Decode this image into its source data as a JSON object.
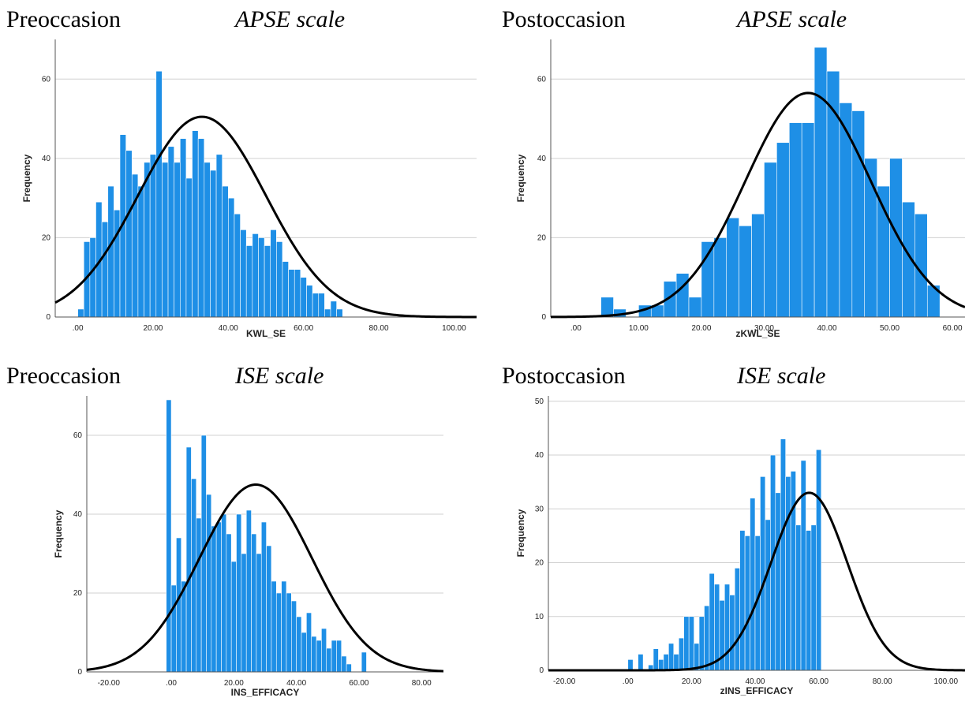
{
  "panels": [
    {
      "occasion": "Preoccasion",
      "scale": "APSE scale"
    },
    {
      "occasion": "Postoccasion",
      "scale": "APSE scale"
    },
    {
      "occasion": "Preoccasion",
      "scale": "ISE scale"
    },
    {
      "occasion": "Postoccasion",
      "scale": "ISE scale"
    }
  ],
  "colors": {
    "bar": "#1E8FE6",
    "bar_edge": "#ffffff",
    "curve": "#000000",
    "grid": "#d0d0d0"
  },
  "chart_data": [
    {
      "type": "bar",
      "title": "Preoccasion APSE scale",
      "xlabel": "KWL_SE",
      "ylabel": "Frequency",
      "xlim": [
        -6,
        106
      ],
      "ylim": [
        0,
        70
      ],
      "xticks": [
        0,
        20,
        40,
        60,
        80,
        100
      ],
      "xtick_labels": [
        ".00",
        "20.00",
        "40.00",
        "60.00",
        "80.00",
        "100.00"
      ],
      "yticks": [
        0,
        20,
        40,
        60
      ],
      "ytick_labels": [
        "0",
        "20",
        "40",
        "60"
      ],
      "grid": true,
      "bin_start": 0,
      "bin_width": 1.6,
      "values": [
        2,
        19,
        20,
        29,
        24,
        33,
        27,
        46,
        42,
        36,
        33,
        39,
        41,
        62,
        39,
        43,
        39,
        45,
        35,
        47,
        45,
        39,
        37,
        41,
        33,
        30,
        26,
        22,
        18,
        21,
        20,
        18,
        22,
        19,
        14,
        12,
        12,
        10,
        8,
        6,
        6,
        2,
        4,
        2
      ],
      "curve": {
        "type": "normal",
        "mean": 33,
        "sd": 17,
        "peak": 50.5
      }
    },
    {
      "type": "bar",
      "title": "Postoccasion APSE scale",
      "xlabel": "zKWL_SE",
      "ylabel": "Frequency",
      "xlim": [
        -4,
        62
      ],
      "ylim": [
        0,
        70
      ],
      "xticks": [
        0,
        10,
        20,
        30,
        40,
        50,
        60
      ],
      "xtick_labels": [
        ".00",
        "10.00",
        "20.00",
        "30.00",
        "40.00",
        "50.00",
        "60.00"
      ],
      "yticks": [
        0,
        20,
        40,
        60
      ],
      "ytick_labels": [
        "0",
        "20",
        "40",
        "60"
      ],
      "grid": true,
      "bin_start": 4,
      "bin_width": 2,
      "values": [
        5,
        2,
        0,
        3,
        3,
        9,
        11,
        5,
        19,
        20,
        25,
        23,
        26,
        39,
        44,
        49,
        49,
        68,
        62,
        54,
        52,
        40,
        33,
        40,
        29,
        26,
        8
      ],
      "curve": {
        "type": "normal",
        "mean": 37,
        "sd": 10,
        "peak": 56.5
      }
    },
    {
      "type": "bar",
      "title": "Preoccasion ISE scale",
      "xlabel": "INS_EFFICACY",
      "ylabel": "Frequency",
      "xlim": [
        -27,
        87
      ],
      "ylim": [
        0,
        70
      ],
      "xticks": [
        -20,
        0,
        20,
        40,
        60,
        80
      ],
      "xtick_labels": [
        "-20.00",
        ".00",
        "20.00",
        "40.00",
        "60.00",
        "80.00"
      ],
      "yticks": [
        0,
        20,
        40,
        60
      ],
      "ytick_labels": [
        "0",
        "20",
        "40",
        "60"
      ],
      "grid": true,
      "bin_start": -1.6,
      "bin_width": 1.6,
      "values": [
        69,
        22,
        34,
        23,
        57,
        49,
        39,
        60,
        45,
        37,
        38,
        40,
        35,
        28,
        40,
        30,
        41,
        35,
        30,
        38,
        32,
        23,
        20,
        23,
        20,
        18,
        14,
        10,
        15,
        9,
        8,
        11,
        6,
        8,
        8,
        4,
        2,
        0,
        0,
        5
      ],
      "curve": {
        "type": "normal",
        "mean": 27,
        "sd": 18,
        "peak": 47.5
      }
    },
    {
      "type": "bar",
      "title": "Postoccasion ISE scale",
      "xlabel": "zINS_EFFICACY",
      "ylabel": "Frequency",
      "xlim": [
        -25,
        106
      ],
      "ylim": [
        0,
        51
      ],
      "xticks": [
        -20,
        0,
        20,
        40,
        60,
        80,
        100
      ],
      "xtick_labels": [
        "-20.00",
        ".00",
        "20.00",
        "40.00",
        "60.00",
        "80.00",
        "100.00"
      ],
      "yticks": [
        0,
        10,
        20,
        30,
        40,
        50
      ],
      "ytick_labels": [
        "0",
        "10",
        "20",
        "30",
        "40",
        "50"
      ],
      "grid": true,
      "bin_start": 0,
      "bin_width": 1.6,
      "values": [
        2,
        0,
        3,
        0,
        1,
        4,
        2,
        3,
        5,
        3,
        6,
        10,
        10,
        5,
        10,
        12,
        18,
        16,
        13,
        16,
        14,
        19,
        26,
        25,
        32,
        25,
        36,
        28,
        40,
        33,
        43,
        36,
        37,
        27,
        39,
        26,
        27,
        41
      ],
      "curve": {
        "type": "normal",
        "mean": 57,
        "sd": 12,
        "peak": 33
      }
    }
  ]
}
